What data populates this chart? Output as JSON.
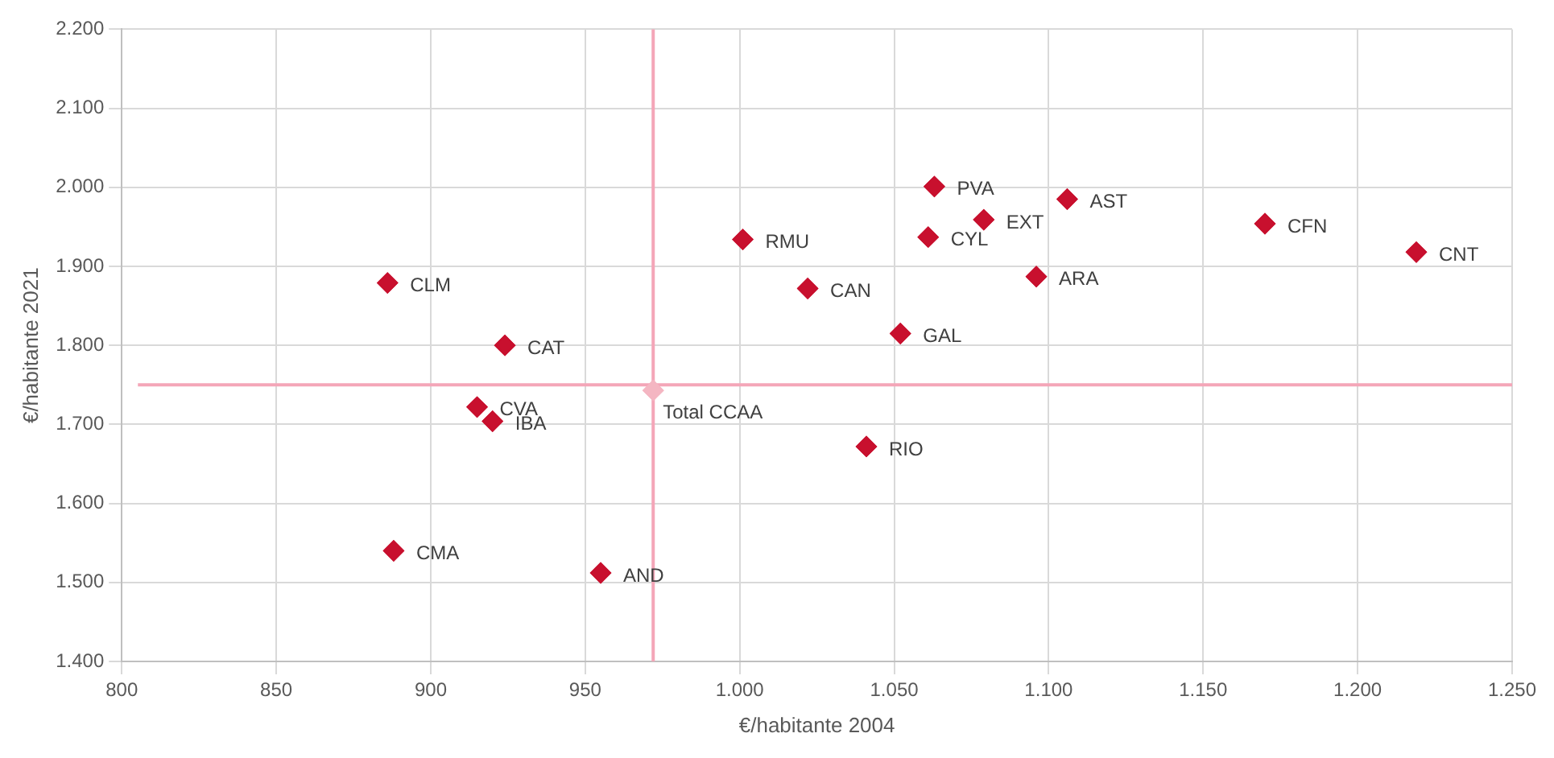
{
  "chart_data": {
    "type": "scatter",
    "xlabel": "€/habitante 2004",
    "ylabel": "€/habitante 2021",
    "series": [
      {
        "color": "#c8102e",
        "x": [
          886,
          924,
          915,
          920,
          888,
          955,
          1001,
          1022,
          1052,
          1041,
          1063,
          1061,
          1079,
          1106,
          1096,
          1170,
          1219
        ],
        "values": [
          1879,
          1800,
          1722,
          1704,
          1540,
          1512,
          1934,
          1872,
          1815,
          1672,
          2001,
          1937,
          1959,
          1985,
          1887,
          1954,
          1918
        ]
      },
      {
        "name": "Total CCAA",
        "color": "#f4b6c2",
        "x": [
          972
        ],
        "values": [
          1743
        ]
      }
    ],
    "annotations": [
      {
        "text": "CLM",
        "x": 886,
        "y": 1879
      },
      {
        "text": "CAT",
        "x": 924,
        "y": 1800
      },
      {
        "text": "CVA",
        "x": 915,
        "y": 1722
      },
      {
        "text": "IBA",
        "x": 920,
        "y": 1704
      },
      {
        "text": "CMA",
        "x": 888,
        "y": 1540
      },
      {
        "text": "AND",
        "x": 955,
        "y": 1512
      },
      {
        "text": "RMU",
        "x": 1001,
        "y": 1934
      },
      {
        "text": "CAN",
        "x": 1022,
        "y": 1872
      },
      {
        "text": "GAL",
        "x": 1052,
        "y": 1815
      },
      {
        "text": "RIO",
        "x": 1041,
        "y": 1672
      },
      {
        "text": "PVA",
        "x": 1063,
        "y": 2001
      },
      {
        "text": "CYL",
        "x": 1061,
        "y": 1937
      },
      {
        "text": "EXT",
        "x": 1079,
        "y": 1959
      },
      {
        "text": "AST",
        "x": 1106,
        "y": 1985
      },
      {
        "text": "ARA",
        "x": 1096,
        "y": 1887
      },
      {
        "text": "CFN",
        "x": 1170,
        "y": 1954
      },
      {
        "text": "CNT",
        "x": 1219,
        "y": 1918
      }
    ],
    "ref_lines": [
      {
        "axis": "x",
        "value": 972,
        "color": "#f4a6b8"
      },
      {
        "axis": "y",
        "value": 1750,
        "color": "#f4a6b8"
      }
    ],
    "xlim": [
      800,
      1250
    ],
    "xticks": [
      {
        "value": 800,
        "label": "800"
      },
      {
        "value": 850,
        "label": "850"
      },
      {
        "value": 900,
        "label": "900"
      },
      {
        "value": 950,
        "label": "950"
      },
      {
        "value": 1000,
        "label": "1.000"
      },
      {
        "value": 1050,
        "label": "1.050"
      },
      {
        "value": 1100,
        "label": "1.100"
      },
      {
        "value": 1150,
        "label": "1.150"
      },
      {
        "value": 1200,
        "label": "1.200"
      },
      {
        "value": 1250,
        "label": "1.250"
      }
    ],
    "ylim": [
      1400,
      2200
    ],
    "yticks": [
      {
        "value": 1400,
        "label": "1.400"
      },
      {
        "value": 1500,
        "label": "1.500"
      },
      {
        "value": 1600,
        "label": "1.600"
      },
      {
        "value": 1700,
        "label": "1.700"
      },
      {
        "value": 1800,
        "label": "1.800"
      },
      {
        "value": 1900,
        "label": "1.900"
      },
      {
        "value": 2000,
        "label": "2.000"
      },
      {
        "value": 2100,
        "label": "2.100"
      },
      {
        "value": 2200,
        "label": "2.200"
      }
    ],
    "grid": true,
    "legend": false,
    "marker": "diamond"
  }
}
